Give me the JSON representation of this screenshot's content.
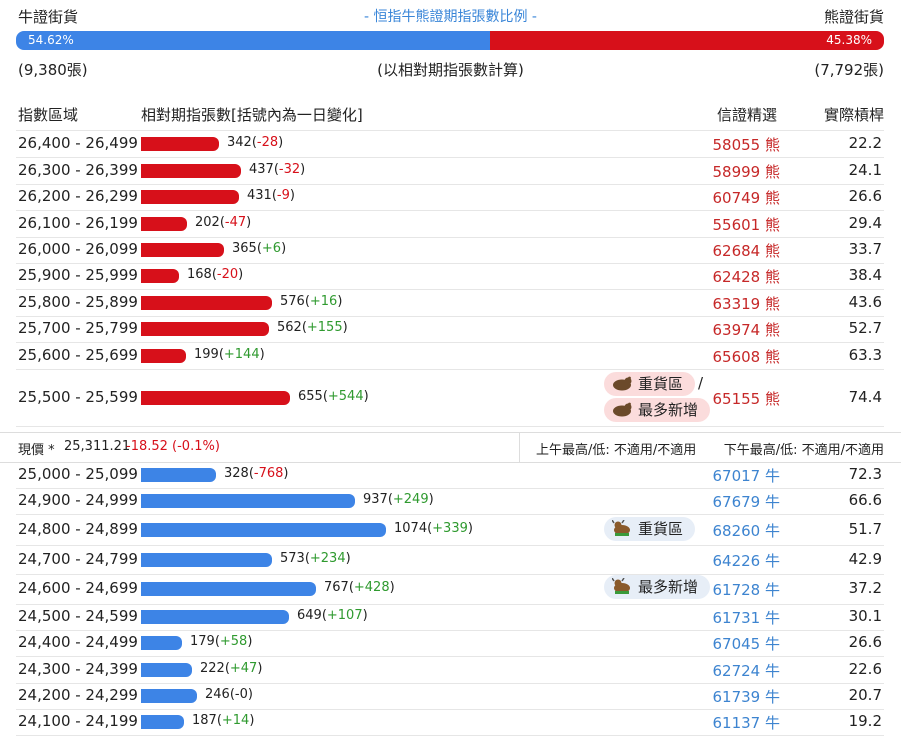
{
  "header": {
    "left": "牛證街貨",
    "center": "- 恒指牛熊證期指張數比例 -",
    "right": "熊證街貨",
    "bull_pct": "54.62%",
    "bear_pct": "45.38%",
    "bull_ratio": 0.5462,
    "bull_count": "(9,380張)",
    "note": "(以相對期指張數計算)",
    "bear_count": "(7,792張)"
  },
  "columns": {
    "range": "指數區域",
    "contracts": "相對期指張數[括號內為一日變化]",
    "pick": "信證精選",
    "ratio": "實際槓桿"
  },
  "bear_rows": [
    {
      "range": "26,400 - 26,499",
      "value": 342,
      "count": "342(",
      "change": "-28",
      "close": ")",
      "code": "58055 熊",
      "lev": "22.2"
    },
    {
      "range": "26,300 - 26,399",
      "value": 437,
      "count": "437(",
      "change": "-32",
      "close": ")",
      "code": "58999 熊",
      "lev": "24.1"
    },
    {
      "range": "26,200 - 26,299",
      "value": 431,
      "count": "431(",
      "change": "-9",
      "close": ")",
      "code": "60749 熊",
      "lev": "26.6"
    },
    {
      "range": "26,100 - 26,199",
      "value": 202,
      "count": "202(",
      "change": "-47",
      "close": ")",
      "code": "55601 熊",
      "lev": "29.4"
    },
    {
      "range": "26,000 - 26,099",
      "value": 365,
      "count": "365(",
      "change": "+6",
      "close": ")",
      "code": "62684 熊",
      "lev": "33.7"
    },
    {
      "range": "25,900 - 25,999",
      "value": 168,
      "count": "168(",
      "change": "-20",
      "close": ")",
      "code": "62428 熊",
      "lev": "38.4"
    },
    {
      "range": "25,800 - 25,899",
      "value": 576,
      "count": "576(",
      "change": "+16",
      "close": ")",
      "code": "63319 熊",
      "lev": "43.6"
    },
    {
      "range": "25,700 - 25,799",
      "value": 562,
      "count": "562(",
      "change": "+155",
      "close": ")",
      "code": "63974 熊",
      "lev": "52.7"
    },
    {
      "range": "25,600 - 25,699",
      "value": 199,
      "count": "199(",
      "change": "+144",
      "close": ")",
      "code": "65608 熊",
      "lev": "63.3"
    },
    {
      "range": "25,500 - 25,599",
      "value": 655,
      "count": "655(",
      "change": "+544",
      "close": ")",
      "code": "65155 熊",
      "lev": "74.4"
    }
  ],
  "bear_badges": {
    "heavy": "重貨區",
    "slash": "/",
    "most_new": "最多新增"
  },
  "price_bar": {
    "label": "現價 *",
    "price": "25,311.21",
    "change": "-18.52 (-0.1%)",
    "am": "上午最高/低: 不適用/不適用",
    "pm": "下午最高/低: 不適用/不適用"
  },
  "bull_rows": [
    {
      "range": "25,000 - 25,099",
      "value": 328,
      "count": "328(",
      "change": "-768",
      "close": ")",
      "code": "67017 牛",
      "lev": "72.3"
    },
    {
      "range": "24,900 - 24,999",
      "value": 937,
      "count": "937(",
      "change": "+249",
      "close": ")",
      "code": "67679 牛",
      "lev": "66.6"
    },
    {
      "range": "24,800 - 24,899",
      "value": 1074,
      "count": "1074(",
      "change": "+339",
      "close": ")",
      "code": "68260 牛",
      "lev": "51.7"
    },
    {
      "range": "24,700 - 24,799",
      "value": 573,
      "count": "573(",
      "change": "+234",
      "close": ")",
      "code": "64226 牛",
      "lev": "42.9"
    },
    {
      "range": "24,600 - 24,699",
      "value": 767,
      "count": "767(",
      "change": "+428",
      "close": ")",
      "code": "61728 牛",
      "lev": "37.2"
    },
    {
      "range": "24,500 - 24,599",
      "value": 649,
      "count": "649(",
      "change": "+107",
      "close": ")",
      "code": "61731 牛",
      "lev": "30.1"
    },
    {
      "range": "24,400 - 24,499",
      "value": 179,
      "count": "179(",
      "change": "+58",
      "close": ")",
      "code": "67045 牛",
      "lev": "26.6"
    },
    {
      "range": "24,300 - 24,399",
      "value": 222,
      "count": "222(",
      "change": "+47",
      "close": ")",
      "code": "62724 牛",
      "lev": "22.6"
    },
    {
      "range": "24,200 - 24,299",
      "value": 246,
      "count": "246(",
      "change": "-0",
      "close": ")",
      "code": "61739 牛",
      "lev": "20.7"
    },
    {
      "range": "24,100 - 24,199",
      "value": 187,
      "count": "187(",
      "change": "+14",
      "close": ")",
      "code": "61137 牛",
      "lev": "19.2"
    }
  ],
  "bull_badges": {
    "heavy": "重貨區",
    "most_new": "最多新增"
  },
  "colors": {
    "bull": "#3d84e6",
    "bear": "#d7101a",
    "up": "#2f9a2f",
    "down": "#d7101a"
  }
}
